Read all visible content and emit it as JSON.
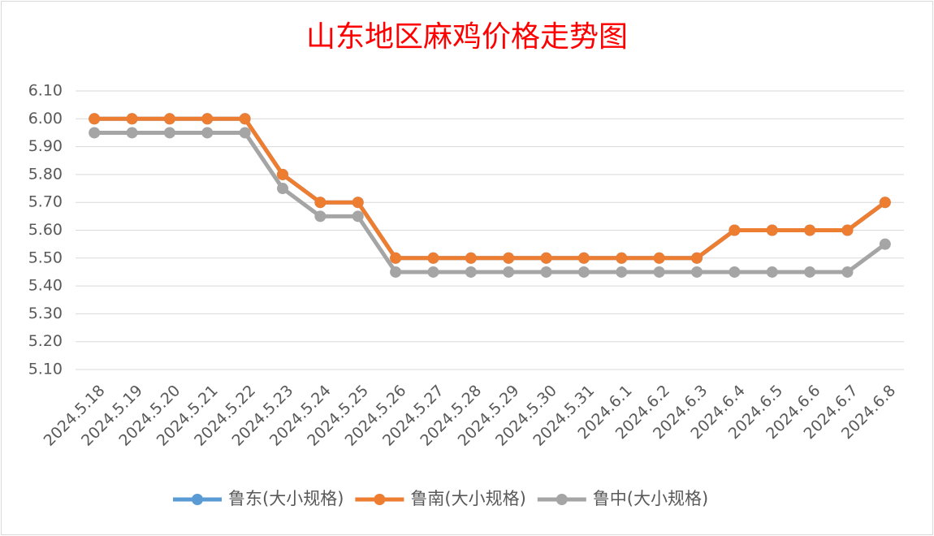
{
  "chart_data": {
    "type": "line",
    "title": "山东地区麻鸡价格走势图",
    "categories": [
      "2024.5.18",
      "2024.5.19",
      "2024.5.20",
      "2024.5.21",
      "2024.5.22",
      "2024.5.23",
      "2024.5.24",
      "2024.5.25",
      "2024.5.26",
      "2024.5.27",
      "2024.5.28",
      "2024.5.29",
      "2024.5.30",
      "2024.5.31",
      "2024.6.1",
      "2024.6.2",
      "2024.6.3",
      "2024.6.4",
      "2024.6.5",
      "2024.6.6",
      "2024.6.7",
      "2024.6.8"
    ],
    "series": [
      {
        "name": "鲁东(大小规格)",
        "color": "#5b9bd5",
        "values": [
          6.0,
          6.0,
          6.0,
          6.0,
          6.0,
          5.8,
          5.7,
          5.7,
          5.5,
          5.5,
          5.5,
          5.5,
          5.5,
          5.5,
          5.5,
          5.5,
          5.5,
          5.6,
          5.6,
          5.6,
          5.6,
          5.7
        ]
      },
      {
        "name": "鲁南(大小规格)",
        "color": "#ed7d31",
        "values": [
          6.0,
          6.0,
          6.0,
          6.0,
          6.0,
          5.8,
          5.7,
          5.7,
          5.5,
          5.5,
          5.5,
          5.5,
          5.5,
          5.5,
          5.5,
          5.5,
          5.5,
          5.6,
          5.6,
          5.6,
          5.6,
          5.7
        ]
      },
      {
        "name": "鲁中(大小规格)",
        "color": "#a5a5a5",
        "values": [
          5.95,
          5.95,
          5.95,
          5.95,
          5.95,
          5.75,
          5.65,
          5.65,
          5.45,
          5.45,
          5.45,
          5.45,
          5.45,
          5.45,
          5.45,
          5.45,
          5.45,
          5.45,
          5.45,
          5.45,
          5.45,
          5.55
        ]
      }
    ],
    "ylim": [
      5.1,
      6.1
    ],
    "yticks": [
      {
        "value": 5.1,
        "label": "5.10"
      },
      {
        "value": 5.2,
        "label": "5.20"
      },
      {
        "value": 5.3,
        "label": "5.30"
      },
      {
        "value": 5.4,
        "label": "5.40"
      },
      {
        "value": 5.5,
        "label": "5.50"
      },
      {
        "value": 5.6,
        "label": "5.60"
      },
      {
        "value": 5.7,
        "label": "5.70"
      },
      {
        "value": 5.8,
        "label": "5.80"
      },
      {
        "value": 5.9,
        "label": "5.90"
      },
      {
        "value": 6.0,
        "label": "6.00"
      },
      {
        "value": 6.1,
        "label": "6.10"
      }
    ],
    "grid": true,
    "legend": "bottom"
  }
}
